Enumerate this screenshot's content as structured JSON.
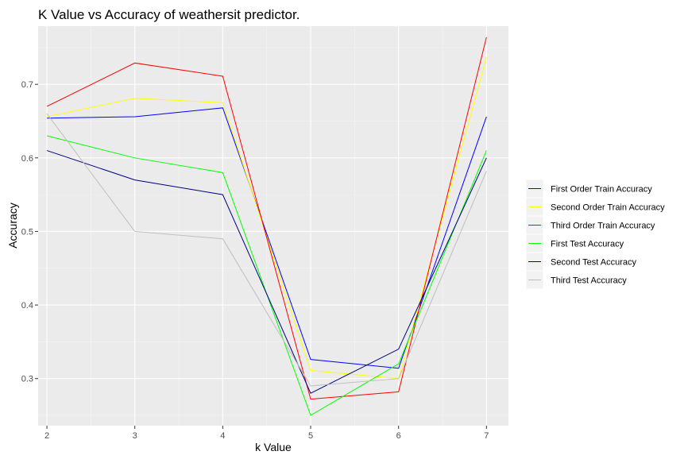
{
  "chart_data": {
    "type": "line",
    "title": "K Value vs Accuracy of weathersit predictor.",
    "xlabel": "k Value",
    "ylabel": "Accuracy",
    "x": [
      2,
      3,
      4,
      5,
      6,
      7
    ],
    "x_ticks": [
      "2",
      "3",
      "4",
      "5",
      "6",
      "7"
    ],
    "y_ticks": [
      "0.3",
      "0.4",
      "0.5",
      "0.6",
      "0.7"
    ],
    "y_tick_values": [
      0.3,
      0.4,
      0.5,
      0.6,
      0.7
    ],
    "xlim": [
      1.9,
      7.25
    ],
    "ylim": [
      0.236,
      0.779
    ],
    "grid": true,
    "legend_position": "right",
    "series": [
      {
        "name": "First Order Train Accuracy",
        "color": "#0000ff",
        "values": [
          0.654,
          0.656,
          0.668,
          0.326,
          0.314,
          0.656
        ]
      },
      {
        "name": "Second Order Train Accuracy",
        "color": "#ffff00",
        "values": [
          0.656,
          0.681,
          0.675,
          0.311,
          0.3,
          0.737
        ]
      },
      {
        "name": "Third Order Train Accuracy",
        "color": "#ff0000",
        "values": [
          0.67,
          0.729,
          0.711,
          0.272,
          0.282,
          0.764
        ]
      },
      {
        "name": "First Test Accuracy",
        "color": "#00ff00",
        "values": [
          0.63,
          0.6,
          0.58,
          0.25,
          0.32,
          0.61
        ]
      },
      {
        "name": "Second Test Accuracy",
        "color": "#000080",
        "values": [
          0.61,
          0.57,
          0.55,
          0.28,
          0.34,
          0.6
        ]
      },
      {
        "name": "Third Test Accuracy",
        "color": "#bebebe",
        "values": [
          0.66,
          0.5,
          0.49,
          0.29,
          0.3,
          0.582
        ]
      }
    ]
  }
}
